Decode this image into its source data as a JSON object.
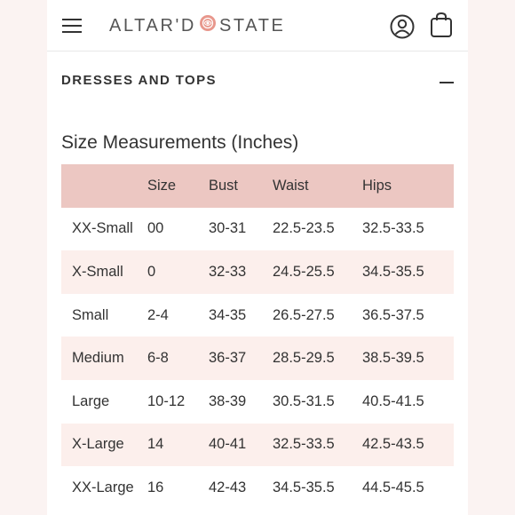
{
  "header": {
    "logo_left": "ALTAR'D",
    "logo_right": "STATE",
    "menu_icon": "hamburger-menu-icon",
    "account_icon": "user-account-icon",
    "bag_icon": "shopping-bag-icon"
  },
  "section": {
    "title": "DRESSES AND TOPS",
    "toggle_icon": "minus-collapse-icon"
  },
  "size_chart": {
    "title": "Size Measurements (Inches)",
    "columns": [
      "",
      "Size",
      "Bust",
      "Waist",
      "Hips"
    ],
    "rows": [
      [
        "XX-Small",
        "00",
        "30-31",
        "22.5-23.5",
        "32.5-33.5"
      ],
      [
        "X-Small",
        "0",
        "32-33",
        "24.5-25.5",
        "34.5-35.5"
      ],
      [
        "Small",
        "2-4",
        "34-35",
        "26.5-27.5",
        "36.5-37.5"
      ],
      [
        "Medium",
        "6-8",
        "36-37",
        "28.5-29.5",
        "38.5-39.5"
      ],
      [
        "Large",
        "10-12",
        "38-39",
        "30.5-31.5",
        "40.5-41.5"
      ],
      [
        "X-Large",
        "14",
        "40-41",
        "32.5-33.5",
        "42.5-43.5"
      ],
      [
        "XX-Large",
        "16",
        "42-43",
        "34.5-35.5",
        "44.5-45.5"
      ]
    ]
  },
  "colors": {
    "header_row": "#ecc7c2",
    "stripe_row": "#fcefec",
    "logo_flower": "#e8978c",
    "text": "#333333"
  }
}
